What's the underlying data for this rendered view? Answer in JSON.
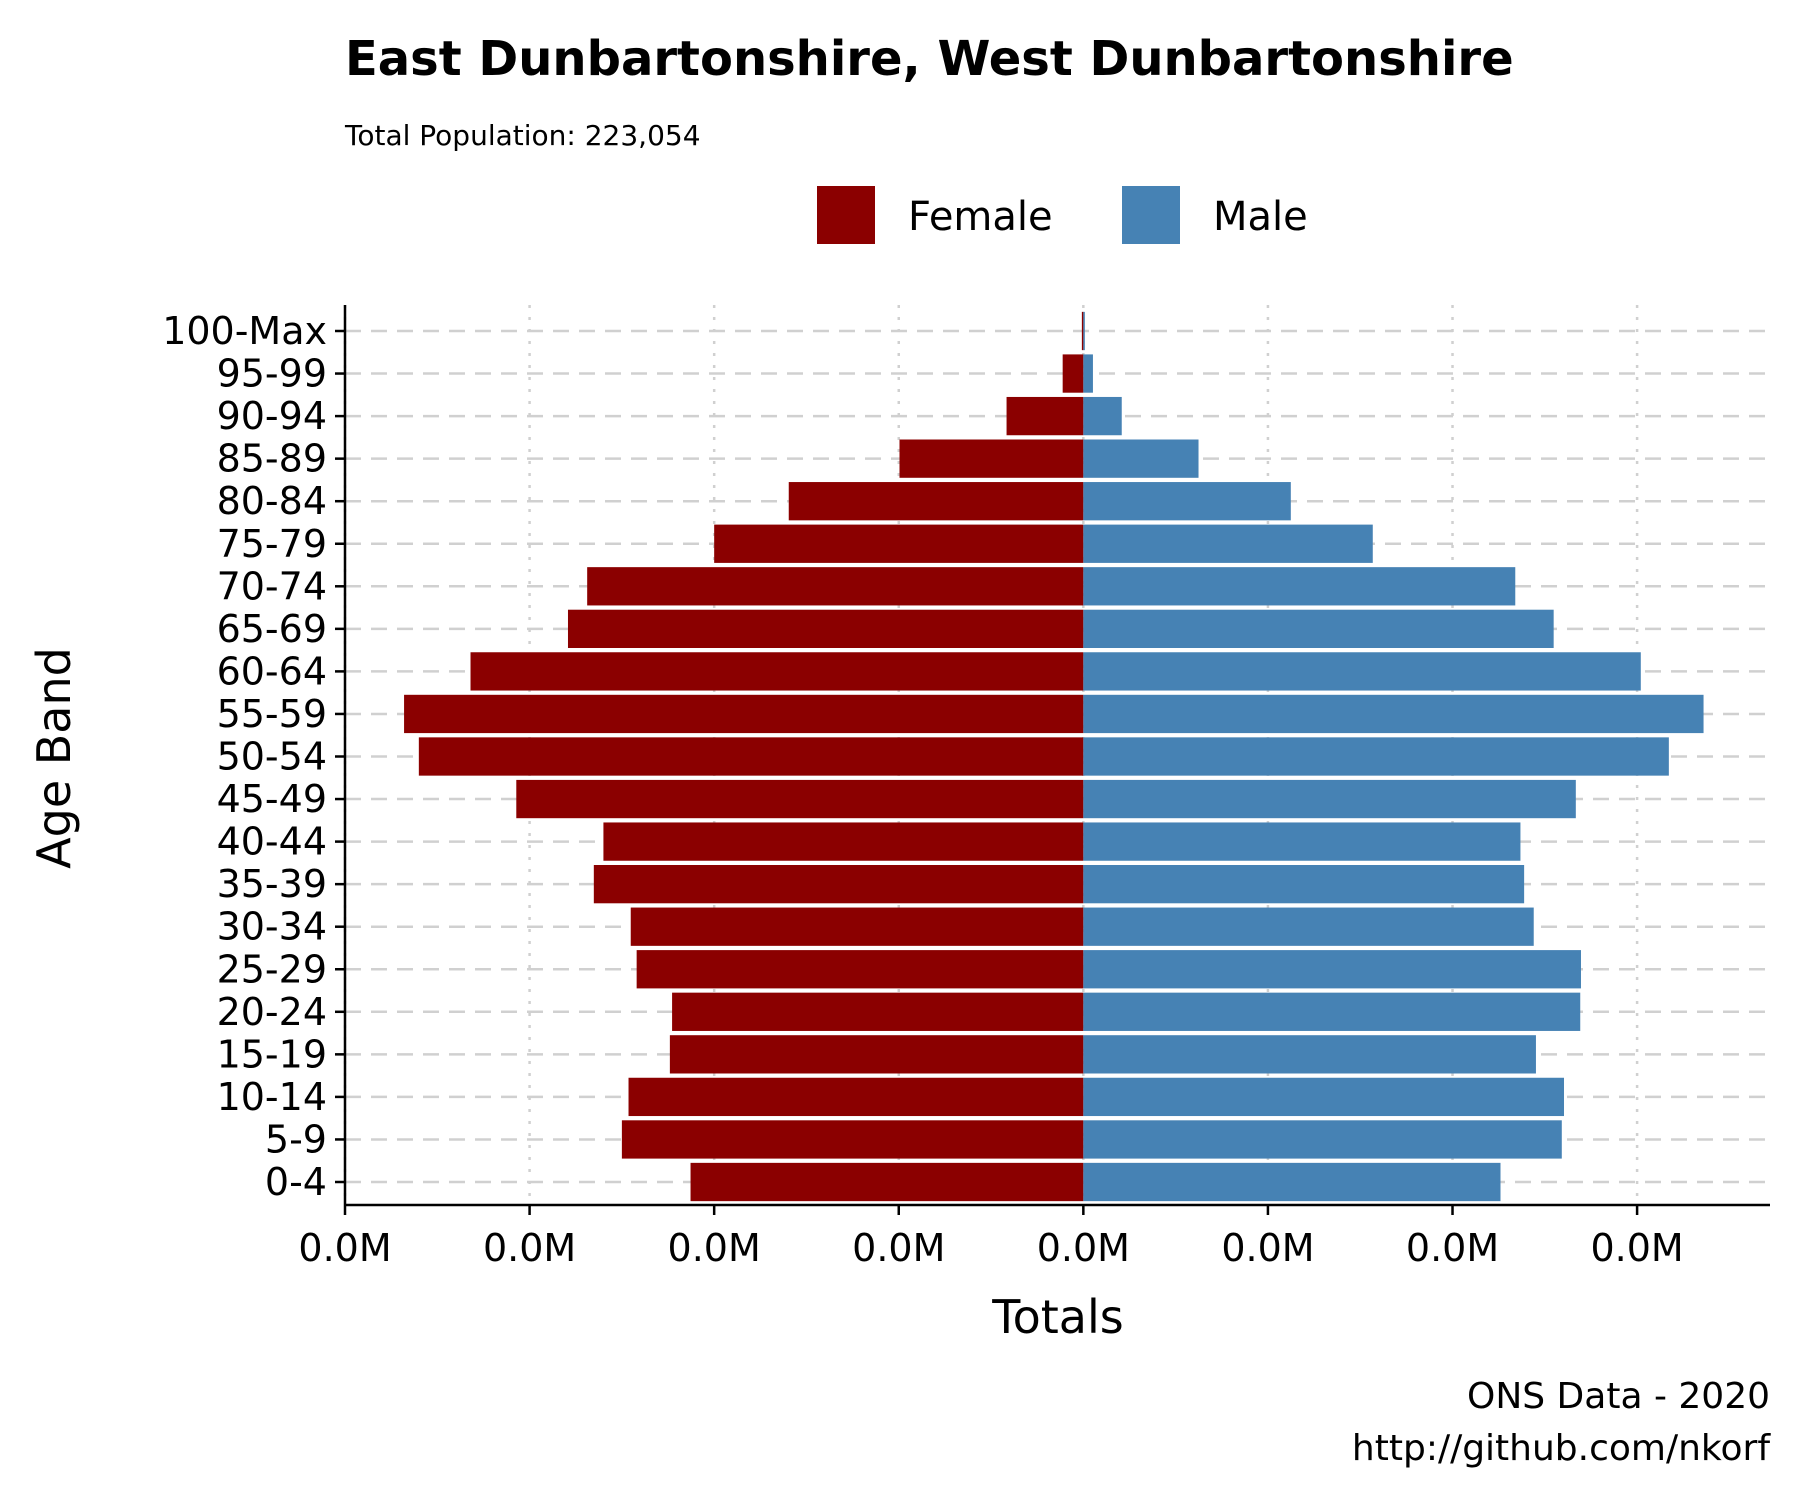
{
  "chart_data": {
    "type": "bar",
    "orientation": "horizontal",
    "title": "East Dunbartonshire, West Dunbartonshire",
    "subtitle": "Total Population:  223,054",
    "xlabel": "Totals",
    "ylabel": "Age Band",
    "caption": [
      "ONS Data - 2020",
      "http://github.com/nkorf"
    ],
    "legend_position": "top",
    "grid": true,
    "categories": [
      "0-4",
      "5-9",
      "10-14",
      "15-19",
      "20-24",
      "25-29",
      "30-34",
      "35-39",
      "40-44",
      "45-49",
      "50-54",
      "55-59",
      "60-64",
      "65-69",
      "70-74",
      "75-79",
      "80-84",
      "85-89",
      "90-94",
      "95-99",
      "100-Max"
    ],
    "series": [
      {
        "name": "Female",
        "color": "#8b0000",
        "values": [
          -5320,
          -6250,
          -6160,
          -5600,
          -5570,
          -6050,
          -6130,
          -6630,
          -6500,
          -7680,
          -9000,
          -9200,
          -8300,
          -6980,
          -6720,
          -5000,
          -3990,
          -2490,
          -1040,
          -280,
          -20
        ]
      },
      {
        "name": "Male",
        "color": "#4682b4",
        "values": [
          5650,
          6480,
          6510,
          6130,
          6730,
          6740,
          6100,
          5970,
          5920,
          6670,
          7930,
          8400,
          7550,
          6370,
          5850,
          3920,
          2810,
          1560,
          520,
          130,
          10
        ]
      }
    ],
    "xlim": [
      -10000,
      9300
    ],
    "xticks": [
      -10000,
      -7500,
      -5000,
      -2500,
      0,
      2500,
      5000,
      7500
    ],
    "xtick_labels": [
      "0.0M",
      "0.0M",
      "0.0M",
      "0.0M",
      "0.0M",
      "0.0M",
      "0.0M",
      "0.0M"
    ]
  }
}
